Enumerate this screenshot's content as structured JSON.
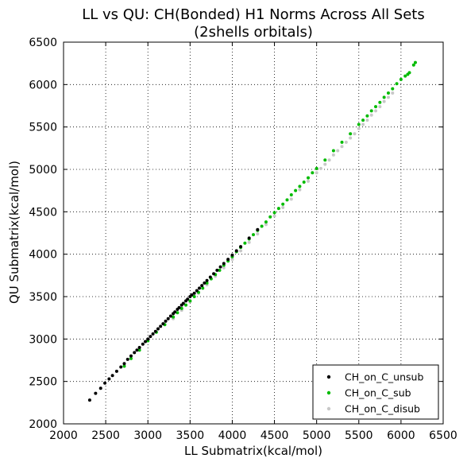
{
  "chart_data": {
    "type": "scatter",
    "title": "LL vs QU: CH(Bonded) H1 Norms Across All Sets",
    "subtitle": "(2shells orbitals)",
    "xlabel": "LL Submatrix(kcal/mol)",
    "ylabel": "QU Submatrix(kcal/mol)",
    "xlim": [
      2000,
      6500
    ],
    "ylim": [
      2000,
      6500
    ],
    "xticks": [
      2000,
      2500,
      3000,
      3500,
      4000,
      4500,
      5000,
      5500,
      6000,
      6500
    ],
    "yticks": [
      2000,
      2500,
      3000,
      3500,
      4000,
      4500,
      5000,
      5500,
      6000,
      6500
    ],
    "xtick_labels": [
      "2000",
      "2500",
      "3000",
      "3500",
      "4000",
      "4500",
      "5000",
      "5500",
      "6000",
      "6500"
    ],
    "ytick_labels": [
      "2000",
      "2500",
      "3000",
      "3500",
      "4000",
      "4500",
      "5000",
      "5500",
      "6000",
      "6500"
    ],
    "grid": true,
    "legend_position": "bottom-right",
    "series": [
      {
        "name": "CH_on_C_unsub",
        "color": "#000000",
        "x": [
          2310,
          2380,
          2440,
          2490,
          2540,
          2580,
          2630,
          2680,
          2720,
          2760,
          2800,
          2840,
          2870,
          2900,
          2940,
          2970,
          3000,
          3030,
          3060,
          3090,
          3120,
          3150,
          3180,
          3210,
          3240,
          3270,
          3300,
          3320,
          3350,
          3370,
          3400,
          3420,
          3450,
          3470,
          3500,
          3520,
          3550,
          3580,
          3610,
          3640,
          3670,
          3700,
          3740,
          3780,
          3820,
          3860,
          3900,
          3950,
          4000,
          4050,
          4100,
          4200,
          4300
        ],
        "y": [
          2280,
          2360,
          2420,
          2480,
          2530,
          2570,
          2620,
          2670,
          2710,
          2760,
          2800,
          2840,
          2870,
          2900,
          2940,
          2970,
          3000,
          3030,
          3060,
          3090,
          3120,
          3150,
          3180,
          3210,
          3240,
          3270,
          3300,
          3320,
          3350,
          3370,
          3400,
          3420,
          3450,
          3470,
          3500,
          3520,
          3540,
          3570,
          3600,
          3630,
          3660,
          3690,
          3730,
          3770,
          3810,
          3850,
          3890,
          3940,
          3990,
          4040,
          4090,
          4190,
          4290
        ]
      },
      {
        "name": "CH_on_C_sub",
        "color": "#00bb00",
        "x": [
          2720,
          2800,
          2900,
          3000,
          3100,
          3200,
          3300,
          3350,
          3400,
          3450,
          3500,
          3550,
          3600,
          3650,
          3700,
          3750,
          3800,
          3850,
          3900,
          3950,
          4000,
          4050,
          4100,
          4150,
          4200,
          4250,
          4300,
          4350,
          4400,
          4450,
          4500,
          4550,
          4600,
          4650,
          4700,
          4750,
          4800,
          4850,
          4900,
          4950,
          5000,
          5100,
          5200,
          5300,
          5400,
          5500,
          5550,
          5600,
          5650,
          5700,
          5750,
          5800,
          5850,
          5900,
          5950,
          6000,
          6050,
          6080,
          6100,
          6150,
          6170
        ],
        "y": [
          2680,
          2770,
          2870,
          2980,
          3080,
          3170,
          3260,
          3310,
          3360,
          3400,
          3450,
          3500,
          3550,
          3600,
          3660,
          3710,
          3760,
          3810,
          3870,
          3920,
          3970,
          4030,
          4080,
          4130,
          4180,
          4230,
          4280,
          4330,
          4380,
          4440,
          4490,
          4540,
          4590,
          4640,
          4700,
          4750,
          4800,
          4850,
          4900,
          4960,
          5010,
          5110,
          5220,
          5320,
          5420,
          5530,
          5580,
          5630,
          5690,
          5740,
          5790,
          5850,
          5900,
          5950,
          6010,
          6060,
          6100,
          6120,
          6140,
          6230,
          6260
        ]
      },
      {
        "name": "CH_on_C_disub",
        "color": "#c8c8c8",
        "x": [
          3300,
          3400,
          3500,
          3600,
          3700,
          3800,
          3900,
          4000,
          4100,
          4200,
          4300,
          4400,
          4500,
          4600,
          4700,
          4800,
          4900,
          5000,
          5050,
          5100,
          5150,
          5200,
          5250,
          5300,
          5350,
          5400,
          5450,
          5500,
          5550,
          5600,
          5650,
          5700,
          5750,
          5800,
          5850,
          5900
        ],
        "y": [
          3240,
          3340,
          3440,
          3540,
          3640,
          3740,
          3840,
          3940,
          4040,
          4140,
          4240,
          4350,
          4450,
          4550,
          4650,
          4760,
          4860,
          4960,
          5010,
          5060,
          5110,
          5170,
          5220,
          5270,
          5320,
          5370,
          5420,
          5480,
          5530,
          5580,
          5640,
          5690,
          5740,
          5800,
          5850,
          5900
        ]
      }
    ]
  }
}
